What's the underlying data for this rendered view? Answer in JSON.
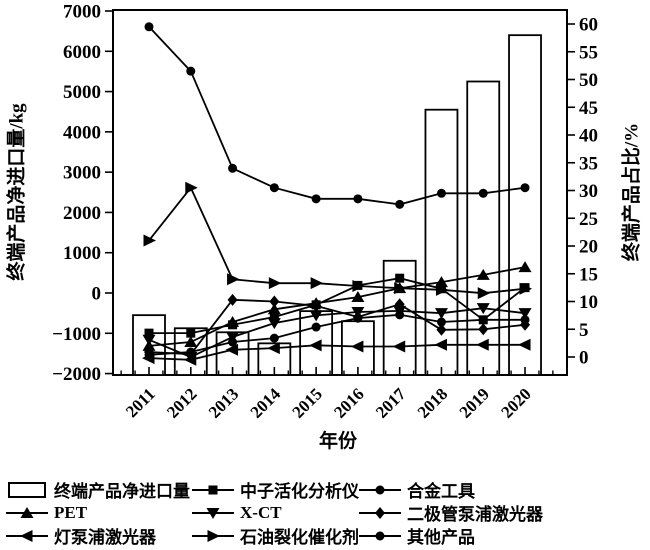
{
  "chart_data": {
    "type": "bar+line-dual-axis",
    "categories": [
      "2011",
      "2012",
      "2013",
      "2014",
      "2015",
      "2016",
      "2017",
      "2018",
      "2019",
      "2020"
    ],
    "xlabel": "年份",
    "left_axis": {
      "label": "终端产品净进口量/kg",
      "min": -2000,
      "max": 7000,
      "tick_step": 1000,
      "ticks_top_to_bottom": [
        "7000",
        "6000",
        "5000",
        "4000",
        "3000",
        "2000",
        "1000",
        "0",
        "−1000",
        "−2000"
      ]
    },
    "right_axis": {
      "label": "终端产品占比/%",
      "min": 0,
      "max": 60,
      "tick_step": 5,
      "ticks_top_to_bottom": [
        "60",
        "55",
        "50",
        "45",
        "40",
        "35",
        "30",
        "25",
        "20",
        "15",
        "10",
        "5",
        "0"
      ]
    },
    "grid": "off",
    "legend_position": "bottom",
    "colors": {
      "foreground": "#000000",
      "background": "#ffffff"
    },
    "series": [
      {
        "name": "终端产品净进口量",
        "type": "bar",
        "axis": "left",
        "marker": "bar",
        "values": [
          -550,
          -875,
          -975,
          -1250,
          -450,
          -700,
          800,
          4550,
          5250,
          6400
        ]
      },
      {
        "name": "中子活化分析仪",
        "type": "line",
        "axis": "right",
        "marker": "square",
        "values": [
          4.3,
          4.3,
          5.8,
          7.2,
          9.4,
          12.9,
          14.2,
          12.3,
          6.7,
          12.5
        ]
      },
      {
        "name": "合金工具",
        "type": "line",
        "axis": "right",
        "marker": "circle",
        "values": [
          59.5,
          51.5,
          34,
          30.5,
          28.5,
          28.5,
          27.5,
          29.5,
          29.5,
          30.5
        ]
      },
      {
        "name": "PET",
        "type": "line",
        "axis": "right",
        "marker": "triangle-up",
        "values": [
          2,
          2.7,
          6.3,
          8.6,
          9.7,
          10.8,
          12.4,
          13.5,
          14.8,
          16.2
        ]
      },
      {
        "name": "X-CT",
        "type": "line",
        "axis": "right",
        "marker": "triangle-down",
        "values": [
          3.1,
          0,
          3.6,
          6.1,
          7.5,
          8.1,
          8.3,
          7.9,
          8.8,
          7.9
        ]
      },
      {
        "name": "二极管泵浦激光器",
        "type": "line",
        "axis": "right",
        "marker": "diamond",
        "values": [
          0.9,
          0.5,
          10.3,
          10,
          9.2,
          7.2,
          9.5,
          4.9,
          5,
          5.8
        ]
      },
      {
        "name": "灯泵浦激光器",
        "type": "line",
        "axis": "right",
        "marker": "triangle-left",
        "values": [
          -0.2,
          -0.5,
          1.3,
          1.6,
          2.1,
          1.9,
          1.9,
          2.2,
          2.2,
          2.2
        ]
      },
      {
        "name": "石油裂化催化剂",
        "type": "line",
        "axis": "right",
        "marker": "triangle-right",
        "values": [
          21,
          30.5,
          14,
          13.3,
          13.3,
          12.8,
          12.4,
          12.1,
          11.5,
          12.3
        ]
      },
      {
        "name": "其他产品",
        "type": "line",
        "axis": "right",
        "marker": "circle",
        "values": [
          0.4,
          0.9,
          2.7,
          3.4,
          5.4,
          7,
          7.6,
          6.3,
          6.7,
          6.7
        ]
      }
    ]
  }
}
